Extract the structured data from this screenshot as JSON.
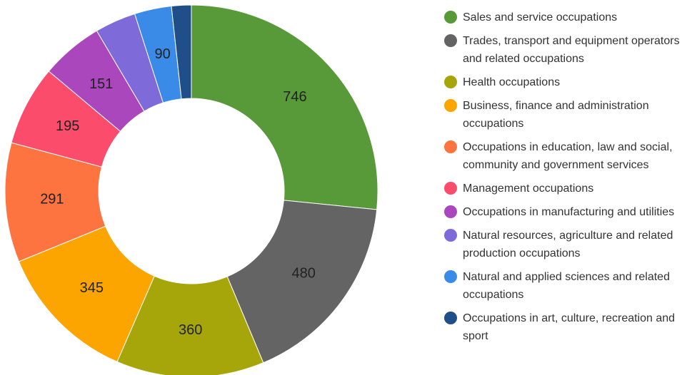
{
  "chart_data": {
    "type": "donut",
    "categories": [
      "Sales and service occupations",
      "Trades, transport and equipment operators and related occupations",
      "Health occupations",
      "Business, finance and administration occupations",
      "Occupations in education, law and social, community and government services",
      "Management occupations",
      "Occupations in manufacturing and utilities",
      "Natural resources, agriculture and related production occupations",
      "Natural and applied sciences and related occupations",
      "Occupations in art, culture, recreation and sport"
    ],
    "values": [
      746,
      480,
      360,
      345,
      291,
      195,
      151,
      100,
      90,
      48
    ],
    "value_labels": [
      "746",
      "480",
      "360",
      "345",
      "291",
      "195",
      "151",
      null,
      "90",
      null
    ],
    "colors": [
      "#58993a",
      "#646464",
      "#a6a60b",
      "#fca500",
      "#fe7440",
      "#fb4c6c",
      "#ab47bc",
      "#7e6bd9",
      "#3a8ae8",
      "#1f4e89"
    ],
    "legend": "right"
  }
}
